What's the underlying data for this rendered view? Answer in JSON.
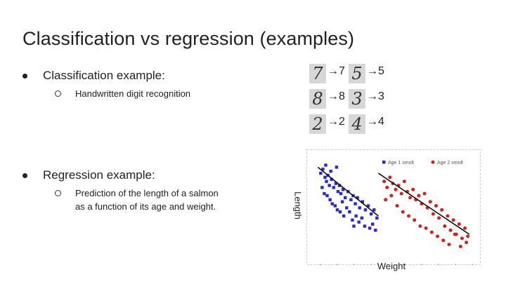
{
  "slide": {
    "title": "Classification vs regression (examples)"
  },
  "classification": {
    "heading": "Classification example:",
    "sub": "Handwritten digit recognition",
    "digits": [
      {
        "input": "7",
        "output": "→7"
      },
      {
        "input": "5",
        "output": "→5"
      },
      {
        "input": "8",
        "output": "→8"
      },
      {
        "input": "3",
        "output": "→3"
      },
      {
        "input": "2",
        "output": "→2"
      },
      {
        "input": "4",
        "output": "→4"
      }
    ]
  },
  "regression": {
    "heading": "Regression example:",
    "sub_line1": "Prediction of the length of a salmon",
    "sub_line2": "as a function of its age and weight."
  },
  "chart_data": {
    "type": "scatter",
    "xlabel": "Weight",
    "ylabel": "Length",
    "legend": [
      "Age 1 smolt",
      "Age 2 smolt"
    ],
    "legend_position": "top-right",
    "colors": {
      "age1": "#2a2ad0",
      "age2": "#d42020"
    },
    "series": [
      {
        "name": "Age 1 smolt",
        "x": [
          12,
          15,
          18,
          20,
          22,
          24,
          27,
          30,
          33,
          36,
          38,
          40,
          43,
          46,
          50,
          54,
          57,
          60,
          63,
          66,
          70,
          74,
          78,
          82,
          86,
          90,
          14,
          17,
          21,
          25,
          28,
          32,
          35,
          39,
          44,
          48,
          52,
          56,
          61,
          65,
          69,
          73,
          80,
          84,
          88,
          19,
          26,
          34,
          42,
          58
        ],
        "y": [
          82,
          86,
          78,
          74,
          80,
          70,
          76,
          68,
          72,
          64,
          70,
          62,
          66,
          58,
          64,
          56,
          60,
          52,
          58,
          48,
          54,
          46,
          50,
          42,
          46,
          38,
          68,
          62,
          60,
          56,
          52,
          50,
          46,
          44,
          40,
          48,
          44,
          36,
          40,
          34,
          38,
          30,
          28,
          32,
          26,
          90,
          84,
          88,
          54,
          30
        ]
      },
      {
        "name": "Age 2 smolt",
        "x": [
          100,
          104,
          108,
          112,
          116,
          120,
          124,
          128,
          132,
          136,
          140,
          144,
          148,
          152,
          156,
          160,
          164,
          168,
          172,
          176,
          180,
          184,
          188,
          192,
          196,
          200,
          204,
          208,
          212,
          216,
          102,
          110,
          118,
          126,
          134,
          142,
          150,
          158,
          166,
          174,
          182,
          190,
          198,
          206,
          214
        ],
        "y": [
          74,
          68,
          78,
          72,
          66,
          70,
          62,
          74,
          64,
          58,
          66,
          56,
          60,
          52,
          62,
          48,
          54,
          42,
          50,
          38,
          46,
          30,
          40,
          26,
          36,
          22,
          32,
          18,
          28,
          20,
          56,
          60,
          50,
          44,
          40,
          36,
          30,
          28,
          24,
          20,
          16,
          12,
          22,
          10,
          14
        ]
      }
    ],
    "fit_lines": [
      {
        "name": "Age 1 smolt",
        "x": [
          8,
          92
        ],
        "y": [
          88,
          40
        ]
      },
      {
        "name": "Age 2 smolt",
        "x": [
          92,
          218
        ],
        "y": [
          82,
          22
        ]
      }
    ]
  }
}
